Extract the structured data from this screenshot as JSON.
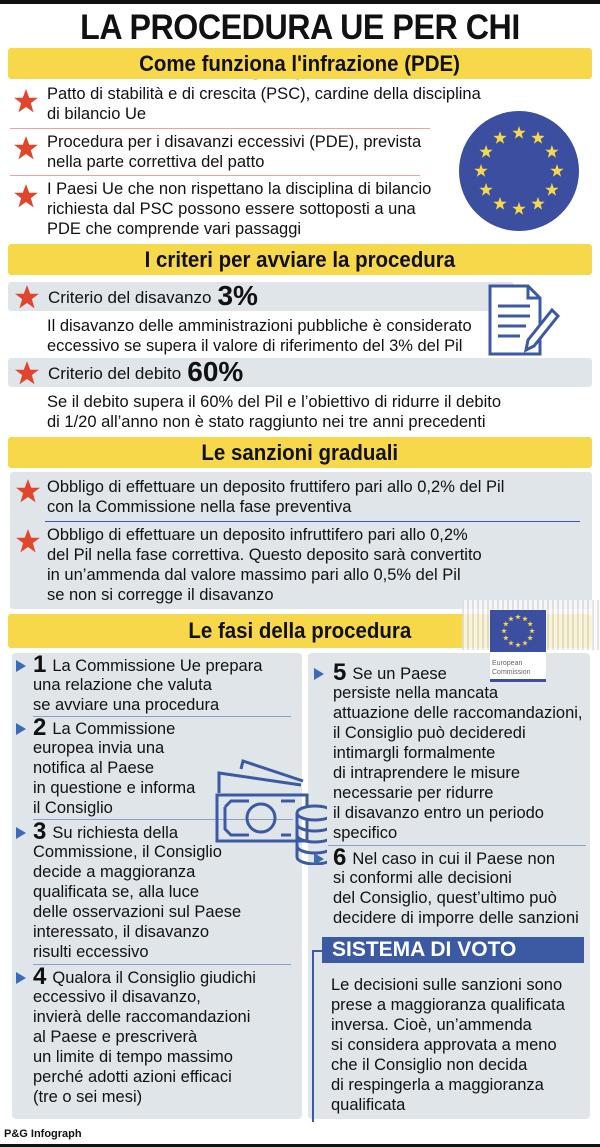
{
  "title": "LA PROCEDURA UE PER CHI SFORA",
  "colors": {
    "header_yellow": "#f6d84a",
    "star_red": "#e0452e",
    "eu_blue": "#3b5aa3",
    "panel_gray": "#e0e5ea"
  },
  "section1": {
    "heading": "Come funziona l'infrazione (PDE)",
    "items": [
      {
        "lines": [
          "Patto di stabilità e di crescita (PSC), cardine della disciplina",
          "di bilancio Ue"
        ]
      },
      {
        "lines": [
          "Procedura per i disavanzi eccessivi (PDE), prevista",
          "nella parte correttiva del patto"
        ]
      },
      {
        "lines": [
          "I Paesi Ue che non rispettano la disciplina di bilancio",
          "richiesta dal PSC possono essere sottoposti a una",
          "PDE che comprende vari passaggi"
        ]
      }
    ]
  },
  "section2": {
    "heading": "I criteri per avviare la procedura",
    "criteria": [
      {
        "label": "Criterio del disavanzo",
        "value": "3%",
        "lines": [
          "Il disavanzo delle amministrazioni pubbliche è considerato",
          "eccessivo se supera il valore di riferimento del 3% del Pil"
        ]
      },
      {
        "label": "Criterio del debito",
        "value": "60%",
        "lines": [
          "Se il debito supera il 60% del Pil e l’obiettivo di ridurre il debito",
          "di 1/20 all’anno non è stato raggiunto nei tre anni precedenti"
        ]
      }
    ]
  },
  "section3": {
    "heading": "Le sanzioni graduali",
    "items": [
      {
        "lines": [
          "Obbligo di effettuare un deposito fruttifero pari allo 0,2% del Pil",
          "con la Commissione nella fase preventiva"
        ]
      },
      {
        "lines": [
          "Obbligo di effettuare un deposito infruttifero pari allo 0,2%",
          "del Pil nella fase correttiva. Questo deposito sarà convertito",
          "in un’ammenda dal valore massimo pari allo 0,5% del Pil",
          "se non si corregge il disavanzo"
        ]
      }
    ]
  },
  "section4": {
    "heading": "Le fasi della procedura",
    "logo_text": "European Commission",
    "steps": [
      {
        "num": "1",
        "lines": [
          "La Commissione Ue prepara",
          "una relazione che valuta",
          "se avviare una procedura"
        ]
      },
      {
        "num": "2",
        "lines": [
          "La Commissione",
          "europea invia una",
          "notifica al Paese",
          "in questione e informa",
          "il Consiglio"
        ]
      },
      {
        "num": "3",
        "lines": [
          "Su richiesta della",
          "Commissione, il Consiglio",
          "decide a maggioranza",
          "qualificata se, alla luce",
          "delle osservazioni sul Paese",
          "interessato, il disavanzo",
          "risulti eccessivo"
        ]
      },
      {
        "num": "4",
        "lines": [
          "Qualora il Consiglio giudichi",
          "eccessivo il disavanzo,",
          "invierà delle raccomandazioni",
          "al Paese e prescriverà",
          "un limite di tempo massimo",
          "perché adotti azioni efficaci",
          "(tre o sei mesi)"
        ]
      },
      {
        "num": "5",
        "lines": [
          "Se un Paese",
          "persiste nella mancata",
          "attuazione delle raccomandazioni,",
          "il Consiglio può decideredi",
          "intimargli formalmente",
          "di intraprendere le misure",
          "necessarie per ridurre",
          "il disavanzo entro un periodo",
          "specifico"
        ]
      },
      {
        "num": "6",
        "lines": [
          "Nel caso in cui il Paese non",
          "si conformi alle decisioni",
          "del Consiglio, quest’ultimo può",
          "decidere di imporre delle sanzioni"
        ]
      }
    ],
    "voting": {
      "heading": "SISTEMA DI VOTO",
      "lines": [
        "Le decisioni sulle sanzioni sono",
        "prese a maggioranza qualificata",
        "inversa. Cioè, un’ammenda",
        "si considera approvata a meno",
        "che il Consiglio non decida",
        "di respingerla a maggioranza",
        "qualificata"
      ]
    }
  },
  "footer": "P&G Infograph"
}
